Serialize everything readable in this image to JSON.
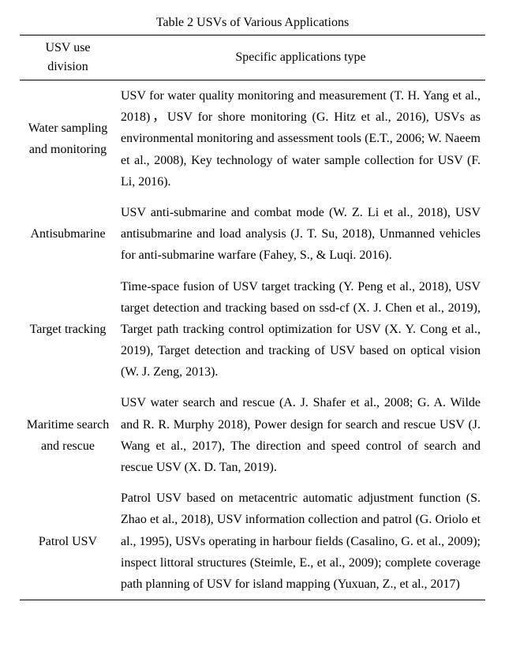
{
  "caption": "Table 2 USVs of Various Applications",
  "headers": {
    "col1": "USV use division",
    "col2": "Specific applications type"
  },
  "rows": [
    {
      "division": "Water sampling and monitoring",
      "app": "USV for water quality monitoring and measurement (T. H. Yang et al., 2018)，USV for shore monitoring (G. Hitz et al., 2016), USVs as environmental monitoring and assessment tools (E.T., 2006; W. Naeem et al., 2008), Key technology of water sample collection for USV (F. Li, 2016)."
    },
    {
      "division": "Antisubmarine",
      "app": "USV anti-submarine and combat mode (W. Z. Li et al., 2018), USV antisubmarine and load analysis (J. T. Su, 2018), Unmanned vehicles for anti-submarine warfare (Fahey, S., & Luqi. 2016)."
    },
    {
      "division": "Target tracking",
      "app": "Time-space fusion of USV target tracking (Y. Peng et al., 2018), USV target detection and tracking based on ssd-cf (X. J. Chen et al., 2019), Target path tracking control optimization for USV (X. Y. Cong et al., 2019), Target detection and tracking of USV based on optical vision (W. J. Zeng, 2013)."
    },
    {
      "division": "Maritime search and rescue",
      "app": "USV water search and rescue (A. J. Shafer et al., 2008; G. A. Wilde and R. R. Murphy 2018), Power design for search and rescue USV (J. Wang et al., 2017), The direction and speed control of search and rescue USV (X. D. Tan, 2019)."
    },
    {
      "division": "Patrol USV",
      "app": "Patrol USV based on metacentric automatic adjustment function (S. Zhao et al., 2018), USV information collection and patrol (G. Oriolo et al., 1995), USVs operating in harbour fields (Casalino, G. et al., 2009); inspect littoral structures (Steimle, E., et al., 2009); complete coverage path planning of USV for island mapping (Yuxuan, Z., et al., 2017)"
    }
  ]
}
